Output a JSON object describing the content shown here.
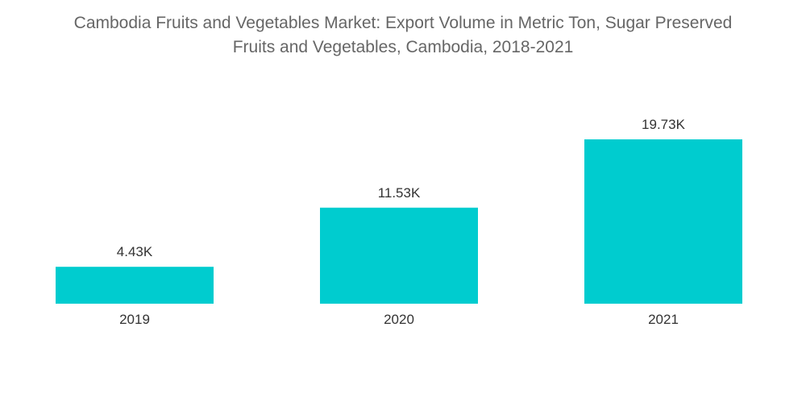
{
  "title_line1": "Cambodia Fruits and Vegetables Market: Export Volume in Metric Ton, Sugar Preserved",
  "title_line2": "Fruits and Vegetables, Cambodia, 2018-2021",
  "colors": {
    "bar": "#00cccf",
    "title": "#666666",
    "label": "#333333"
  },
  "chart_data": {
    "type": "bar",
    "title": "Cambodia Fruits and Vegetables Market: Export Volume in Metric Ton, Sugar Preserved Fruits and Vegetables, Cambodia, 2018-2021",
    "categories": [
      "2019",
      "2020",
      "2021"
    ],
    "values": [
      4430,
      11530,
      19730
    ],
    "data_labels": [
      "4.43K",
      "11.53K",
      "19.73K"
    ],
    "xlabel": "",
    "ylabel": "",
    "ylim": [
      0,
      20000
    ],
    "grid": false,
    "legend": "none"
  }
}
